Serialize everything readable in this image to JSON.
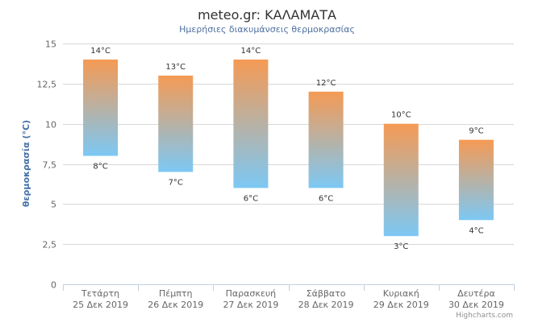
{
  "chart_data": {
    "type": "columnrange",
    "title": "meteo.gr: ΚΑΛΑΜΑΤΑ",
    "subtitle": "Ημερήσιες διακυμάνσεις θερμοκρασίας",
    "ylabel": "θερμοκρασία (°C)",
    "ylim": [
      0,
      15
    ],
    "yticks": [
      "0",
      "2,5",
      "5",
      "7,5",
      "10",
      "12,5",
      "15"
    ],
    "ytick_values": [
      0,
      2.5,
      5,
      7.5,
      10,
      12.5,
      15
    ],
    "grid": true,
    "categories": [
      [
        "Τετάρτη",
        "25 Δεκ 2019"
      ],
      [
        "Πέμπτη",
        "26 Δεκ 2019"
      ],
      [
        "Παρασκευή",
        "27 Δεκ 2019"
      ],
      [
        "Σάββατο",
        "28 Δεκ 2019"
      ],
      [
        "Κυριακή",
        "29 Δεκ 2019"
      ],
      [
        "Δευτέρα",
        "30 Δεκ 2019"
      ]
    ],
    "series": [
      {
        "low": [
          8,
          7,
          6,
          6,
          3,
          4
        ],
        "high": [
          14,
          13,
          14,
          12,
          10,
          9
        ],
        "low_labels": [
          "8°C",
          "7°C",
          "6°C",
          "6°C",
          "3°C",
          "4°C"
        ],
        "high_labels": [
          "14°C",
          "13°C",
          "14°C",
          "12°C",
          "10°C",
          "9°C"
        ]
      }
    ],
    "colors": {
      "high": "#f59a54",
      "low": "#7cc8f4",
      "grid": "#d8d8d8"
    }
  },
  "credits": "Highcharts.com"
}
